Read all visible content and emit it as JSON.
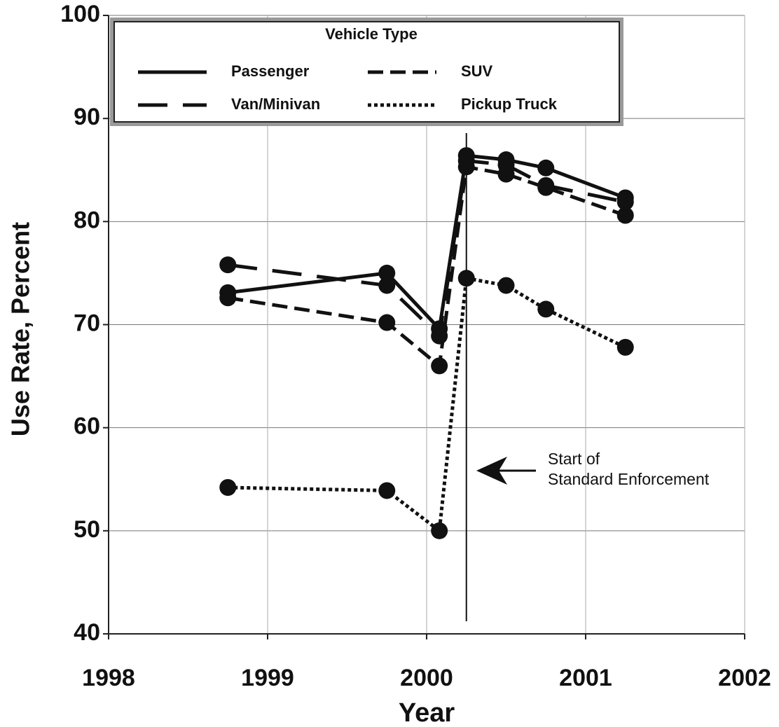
{
  "chart_data": {
    "type": "line",
    "x_label": "Year",
    "y_label": "Use Rate, Percent",
    "legend_title": "Vehicle Type",
    "legend": "top-left",
    "xlim": [
      1998,
      2002
    ],
    "xticks": [
      1998,
      1999,
      2000,
      2001,
      2002
    ],
    "ylim": [
      40,
      100
    ],
    "yticks": [
      40,
      50,
      60,
      70,
      80,
      90,
      100
    ],
    "grid": true,
    "x": [
      1998.75,
      1999.75,
      2000.08,
      2000.25,
      2000.5,
      2000.75,
      2001.25
    ],
    "series": [
      {
        "name": "Passenger",
        "color": "#111111",
        "dash": "solid",
        "values": [
          73.1,
          75.0,
          69.6,
          86.4,
          86.0,
          85.2,
          82.3
        ]
      },
      {
        "name": "SUV",
        "color": "#111111",
        "dash": "dash",
        "values": [
          72.6,
          70.2,
          66.0,
          85.3,
          84.6,
          83.3,
          80.6
        ]
      },
      {
        "name": "Van/Minivan",
        "color": "#111111",
        "dash": "long-dash",
        "values": [
          75.8,
          73.8,
          68.9,
          85.9,
          85.5,
          83.5,
          81.9
        ]
      },
      {
        "name": "Pickup Truck",
        "color": "#111111",
        "dash": "dot",
        "values": [
          54.2,
          53.9,
          50.0,
          74.5,
          73.8,
          71.5,
          67.8
        ]
      }
    ],
    "annotation": {
      "x": 2000.25,
      "text": [
        "Start of",
        "Standard Enforcement"
      ]
    }
  }
}
